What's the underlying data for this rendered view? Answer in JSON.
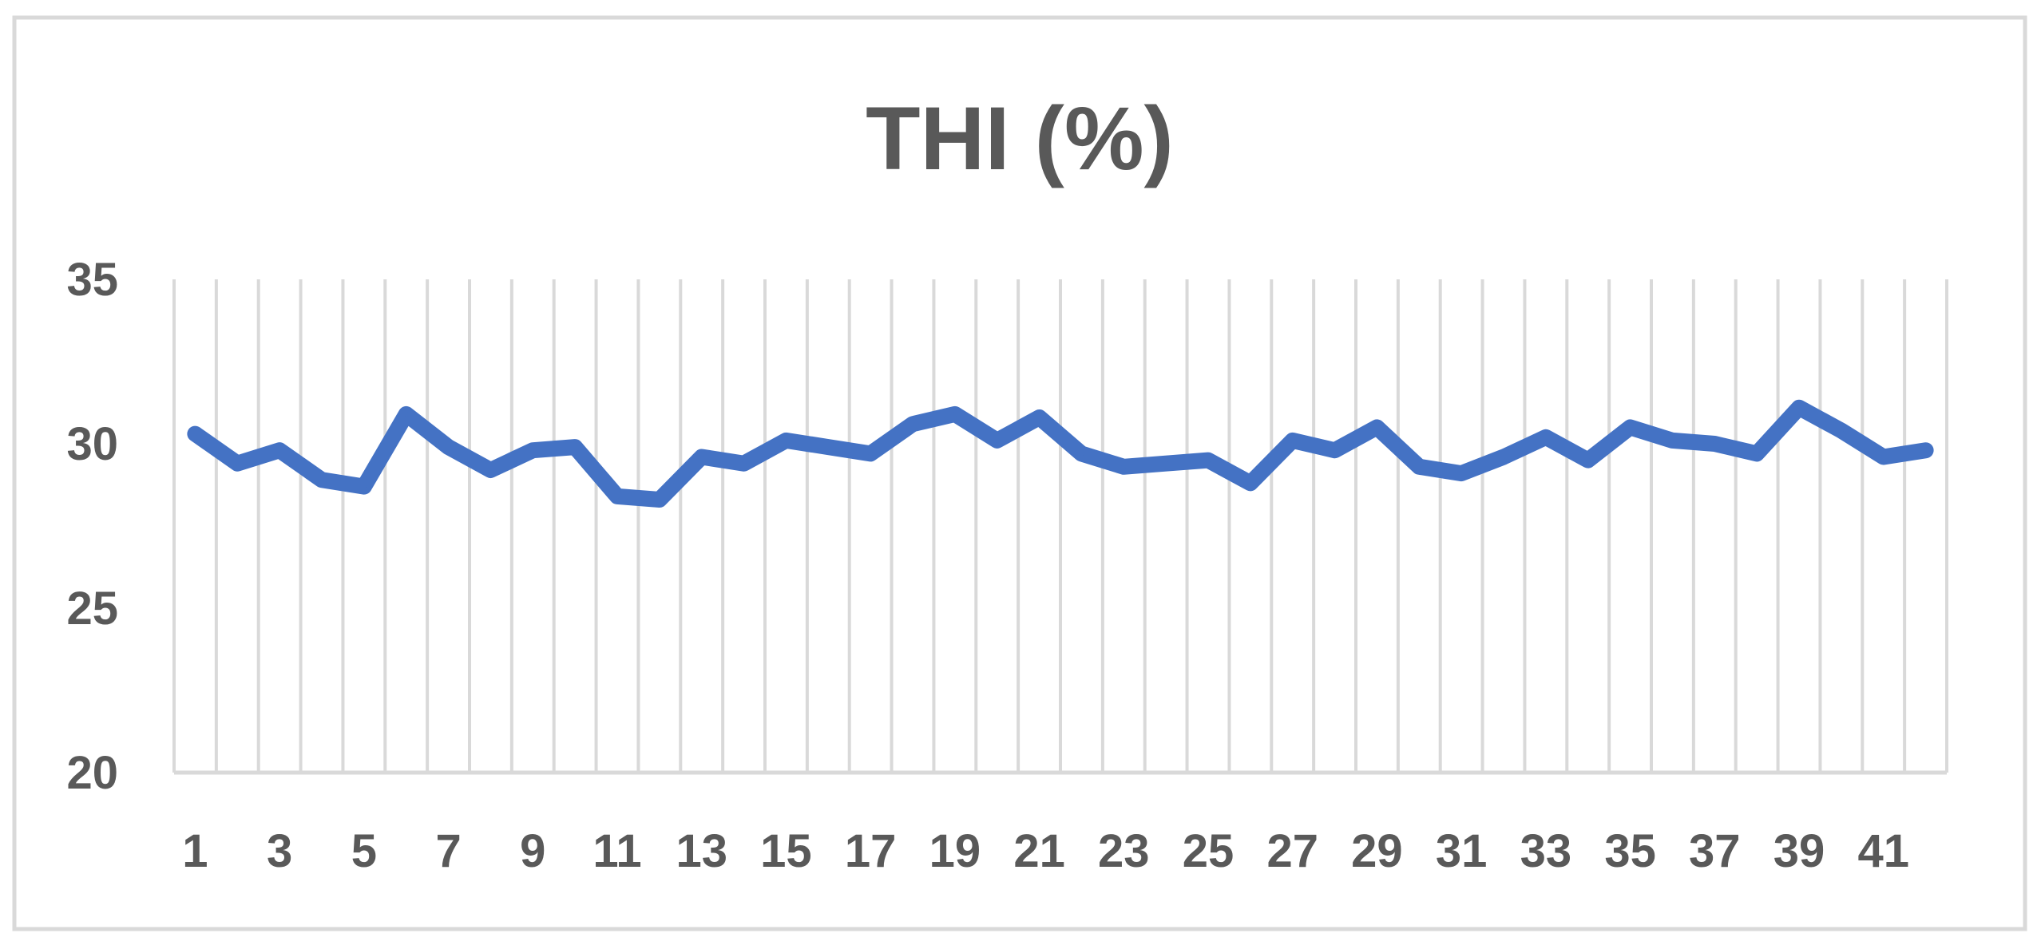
{
  "chart_data": {
    "type": "line",
    "title": "THI (%)",
    "xlabel": "",
    "ylabel": "",
    "x": [
      1,
      2,
      3,
      4,
      5,
      6,
      7,
      8,
      9,
      10,
      11,
      12,
      13,
      14,
      15,
      16,
      17,
      18,
      19,
      20,
      21,
      22,
      23,
      24,
      25,
      26,
      27,
      28,
      29,
      30,
      31,
      32,
      33,
      34,
      35,
      36,
      37,
      38,
      39,
      40,
      41,
      42
    ],
    "x_tick_labels": [
      "1",
      "3",
      "5",
      "7",
      "9",
      "11",
      "13",
      "15",
      "17",
      "19",
      "21",
      "23",
      "25",
      "27",
      "29",
      "31",
      "33",
      "35",
      "37",
      "39",
      "41"
    ],
    "y_tick_labels": [
      "20",
      "25",
      "30",
      "35"
    ],
    "ylim": [
      20,
      35
    ],
    "grid": "vertical",
    "legend": "none",
    "series": [
      {
        "color": "#4472C4",
        "values": [
          30.3,
          29.4,
          29.8,
          28.9,
          28.7,
          30.9,
          29.9,
          29.2,
          29.8,
          29.9,
          28.4,
          28.3,
          29.6,
          29.4,
          30.1,
          29.9,
          29.7,
          30.6,
          30.9,
          30.1,
          30.8,
          29.7,
          29.3,
          29.4,
          29.5,
          28.8,
          30.1,
          29.8,
          30.5,
          29.3,
          29.1,
          29.6,
          30.2,
          29.5,
          30.5,
          30.1,
          30.0,
          29.7,
          31.1,
          30.4,
          29.6,
          29.8
        ]
      }
    ],
    "colors": {
      "line": "#4472C4",
      "grid": "#D9D9D9",
      "text": "#595959",
      "border": "#D9D9D9"
    }
  }
}
